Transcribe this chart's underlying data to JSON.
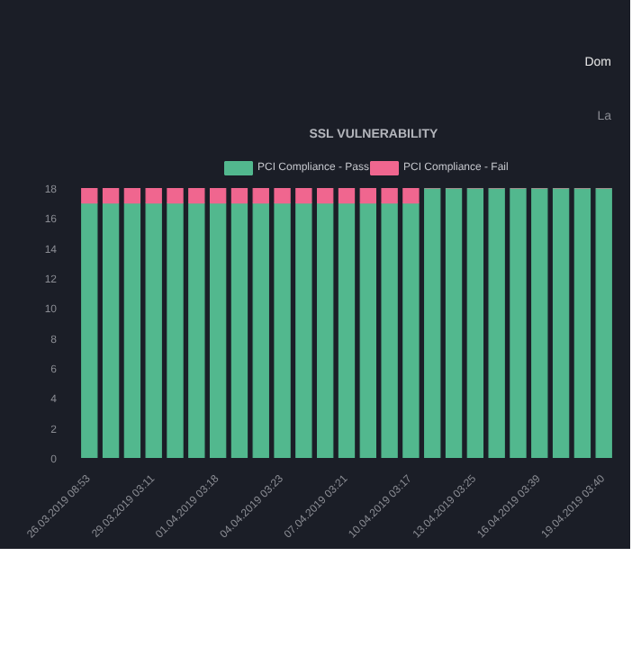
{
  "chart_data": {
    "type": "bar",
    "title": "SSL VULNERABILITY",
    "stacked": true,
    "categories": [
      "26.03.2019 08:53",
      null,
      null,
      "29.03.2019 03:11",
      null,
      null,
      "01.04.2019 03:18",
      null,
      null,
      "04.04.2019 03:23",
      null,
      null,
      "07.04.2019 03:21",
      null,
      null,
      "10.04.2019 03:17",
      null,
      null,
      "13.04.2019 03:25",
      null,
      null,
      "16.04.2019 03:39",
      null,
      null,
      "19.04.2019 03:40"
    ],
    "series": [
      {
        "name": "PCI Compliance - Pass",
        "color": "#52b88e",
        "values": [
          17,
          17,
          17,
          17,
          17,
          17,
          17,
          17,
          17,
          17,
          17,
          17,
          17,
          17,
          17,
          17,
          18,
          18,
          18,
          18,
          18,
          18,
          18,
          18,
          18
        ]
      },
      {
        "name": "PCI Compliance - Fail",
        "color": "#f0668f",
        "values": [
          1,
          1,
          1,
          1,
          1,
          1,
          1,
          1,
          1,
          1,
          1,
          1,
          1,
          1,
          1,
          1,
          0,
          0,
          0,
          0,
          0,
          0,
          0,
          0,
          0
        ]
      }
    ],
    "ylim": [
      0,
      18
    ],
    "yticks": [
      0,
      2,
      4,
      6,
      8,
      10,
      12,
      14,
      16,
      18
    ],
    "grid": false,
    "legend": "top",
    "annotations": [
      "Dom",
      "La"
    ]
  }
}
